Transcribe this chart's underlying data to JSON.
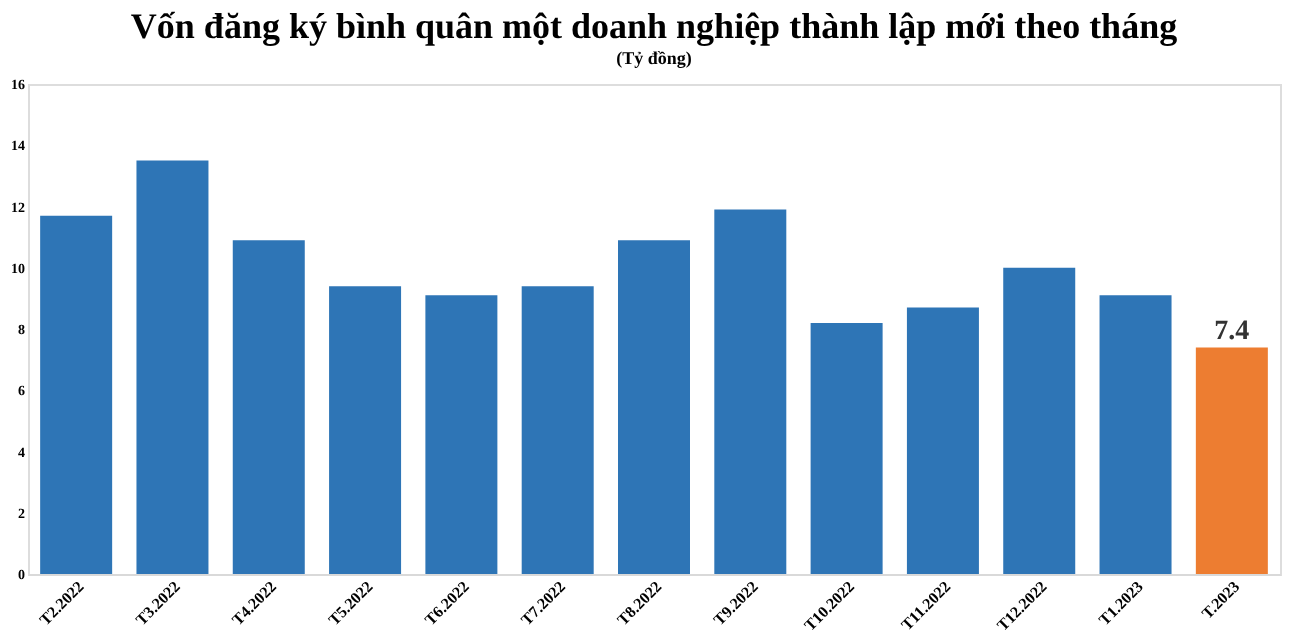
{
  "chart_data": {
    "type": "bar",
    "title": "Vốn đăng ký bình quân một doanh nghiệp thành lập mới theo tháng",
    "subtitle": "(Tỷ đồng)",
    "categories": [
      "T2.2022",
      "T3.2022",
      "T4.2022",
      "T5.2022",
      "T6.2022",
      "T7.2022",
      "T8.2022",
      "T9.2022",
      "T10.2022",
      "T11.2022",
      "T12.2022",
      "T1.2023",
      "T.2023"
    ],
    "values": [
      11.7,
      13.5,
      10.9,
      9.4,
      9.1,
      9.4,
      10.9,
      11.9,
      8.2,
      8.7,
      10.0,
      9.1,
      7.4
    ],
    "colors": [
      "#2e75b6",
      "#2e75b6",
      "#2e75b6",
      "#2e75b6",
      "#2e75b6",
      "#2e75b6",
      "#2e75b6",
      "#2e75b6",
      "#2e75b6",
      "#2e75b6",
      "#2e75b6",
      "#2e75b6",
      "#ed7d31"
    ],
    "value_labels": [
      null,
      null,
      null,
      null,
      null,
      null,
      null,
      null,
      null,
      null,
      null,
      null,
      "7.4"
    ],
    "ylim": [
      0,
      16
    ],
    "yticks": [
      0,
      2,
      4,
      6,
      8,
      10,
      12,
      14,
      16
    ],
    "grid": false
  }
}
